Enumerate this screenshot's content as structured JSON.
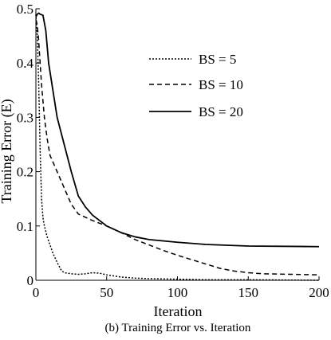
{
  "chart_data": {
    "type": "line",
    "title": "",
    "caption": "(b) Training Error vs. Iteration",
    "xlabel": "Iteration",
    "ylabel": "Training Error (E)",
    "xlim": [
      0,
      200
    ],
    "ylim": [
      0,
      0.5
    ],
    "xticks": [
      "0",
      "50",
      "100",
      "150",
      "200"
    ],
    "yticks": [
      "0",
      "0.1",
      "0.2",
      "0.3",
      "0.4",
      "0.5"
    ],
    "grid": false,
    "legend_position": "top-right",
    "series": [
      {
        "name": "BS = 5",
        "style": "dotted",
        "color": "#000000",
        "x": [
          0,
          1,
          2,
          3,
          4,
          5,
          6,
          8,
          10,
          12,
          15,
          18,
          20,
          25,
          30,
          35,
          40,
          45,
          50,
          60,
          70,
          80,
          100,
          120,
          150,
          200
        ],
        "y": [
          0.49,
          0.45,
          0.36,
          0.24,
          0.15,
          0.115,
          0.1,
          0.08,
          0.065,
          0.05,
          0.033,
          0.018,
          0.014,
          0.012,
          0.011,
          0.012,
          0.014,
          0.013,
          0.01,
          0.006,
          0.004,
          0.003,
          0.002,
          0.001,
          0.001,
          0.0
        ]
      },
      {
        "name": "BS = 10",
        "style": "dashed",
        "color": "#000000",
        "x": [
          0,
          1,
          2,
          3,
          4,
          5,
          6,
          8,
          10,
          15,
          20,
          25,
          30,
          40,
          50,
          60,
          70,
          80,
          90,
          100,
          110,
          120,
          130,
          140,
          150,
          160,
          180,
          200
        ],
        "y": [
          0.48,
          0.47,
          0.44,
          0.4,
          0.36,
          0.33,
          0.3,
          0.26,
          0.23,
          0.2,
          0.17,
          0.14,
          0.122,
          0.11,
          0.1,
          0.088,
          0.075,
          0.065,
          0.055,
          0.046,
          0.038,
          0.03,
          0.022,
          0.017,
          0.014,
          0.012,
          0.011,
          0.01
        ]
      },
      {
        "name": "BS = 20",
        "style": "solid",
        "color": "#000000",
        "x": [
          0,
          1,
          2,
          3,
          5,
          7,
          9,
          12,
          15,
          20,
          25,
          30,
          35,
          40,
          50,
          60,
          70,
          80,
          100,
          120,
          150,
          200
        ],
        "y": [
          0.485,
          0.49,
          0.492,
          0.49,
          0.488,
          0.46,
          0.4,
          0.35,
          0.3,
          0.25,
          0.2,
          0.155,
          0.135,
          0.12,
          0.1,
          0.088,
          0.08,
          0.075,
          0.07,
          0.066,
          0.063,
          0.062
        ]
      }
    ]
  }
}
